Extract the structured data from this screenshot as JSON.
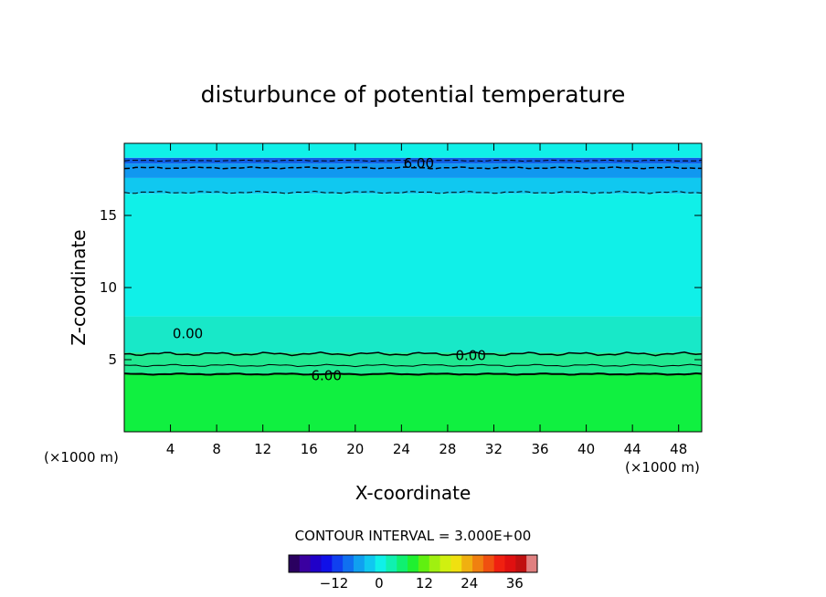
{
  "chart_data": {
    "type": "heatmap",
    "title": "disturbunce of potential temperature",
    "xlabel": "X-coordinate",
    "ylabel": "Z-coordinate",
    "x_unit_left": "(×1000 m)",
    "x_unit_right": "(×1000 m)",
    "xlim": [
      0,
      50
    ],
    "ylim": [
      0,
      20
    ],
    "x_ticks": [
      4,
      8,
      12,
      16,
      20,
      24,
      28,
      32,
      36,
      40,
      44,
      48
    ],
    "y_ticks": [
      5,
      10,
      15
    ],
    "contour_interval_text": "CONTOUR INTERVAL = 3.000E+00",
    "contour_labels": [
      {
        "text": "6.00",
        "x": 25.5,
        "y": 18.6
      },
      {
        "text": "0.00",
        "x": 5.5,
        "y": 6.8
      },
      {
        "text": "0.00",
        "x": 30.0,
        "y": 5.3
      },
      {
        "text": "6.00",
        "x": 17.5,
        "y": 3.9
      }
    ],
    "layers": [
      {
        "z_min": 0,
        "z_max": 4.0,
        "value": 9,
        "color": "#10f040"
      },
      {
        "z_min": 4.0,
        "z_max": 5.5,
        "value": 6,
        "color": "#20e890"
      },
      {
        "z_min": 5.5,
        "z_max": 8.0,
        "value": 3,
        "color": "#18e8c8"
      },
      {
        "z_min": 8.0,
        "z_max": 16.5,
        "value": 0,
        "color": "#10f0e8"
      },
      {
        "z_min": 16.5,
        "z_max": 17.6,
        "value": -3,
        "color": "#10c8f0"
      },
      {
        "z_min": 17.6,
        "z_max": 18.6,
        "value": -6,
        "color": "#1098f0"
      },
      {
        "z_min": 18.6,
        "z_max": 19.0,
        "value": -9,
        "color": "#1060e8"
      },
      {
        "z_min": 19.0,
        "z_max": 20.0,
        "value": 0,
        "color": "#10f0e8"
      }
    ],
    "colorbar": {
      "ticks": [
        -12,
        0,
        12,
        24,
        36
      ],
      "range": [
        -24,
        42
      ],
      "colors": [
        "#2a0060",
        "#3a00a0",
        "#2000c8",
        "#1010e8",
        "#1040f0",
        "#1070f0",
        "#10a0f0",
        "#10c8f0",
        "#10f0e8",
        "#10f0b0",
        "#10f070",
        "#20f030",
        "#60f010",
        "#a0f010",
        "#d0f010",
        "#f0e010",
        "#f0b010",
        "#f08010",
        "#f05010",
        "#f02010",
        "#e01010",
        "#c01010",
        "#e08080"
      ]
    }
  }
}
